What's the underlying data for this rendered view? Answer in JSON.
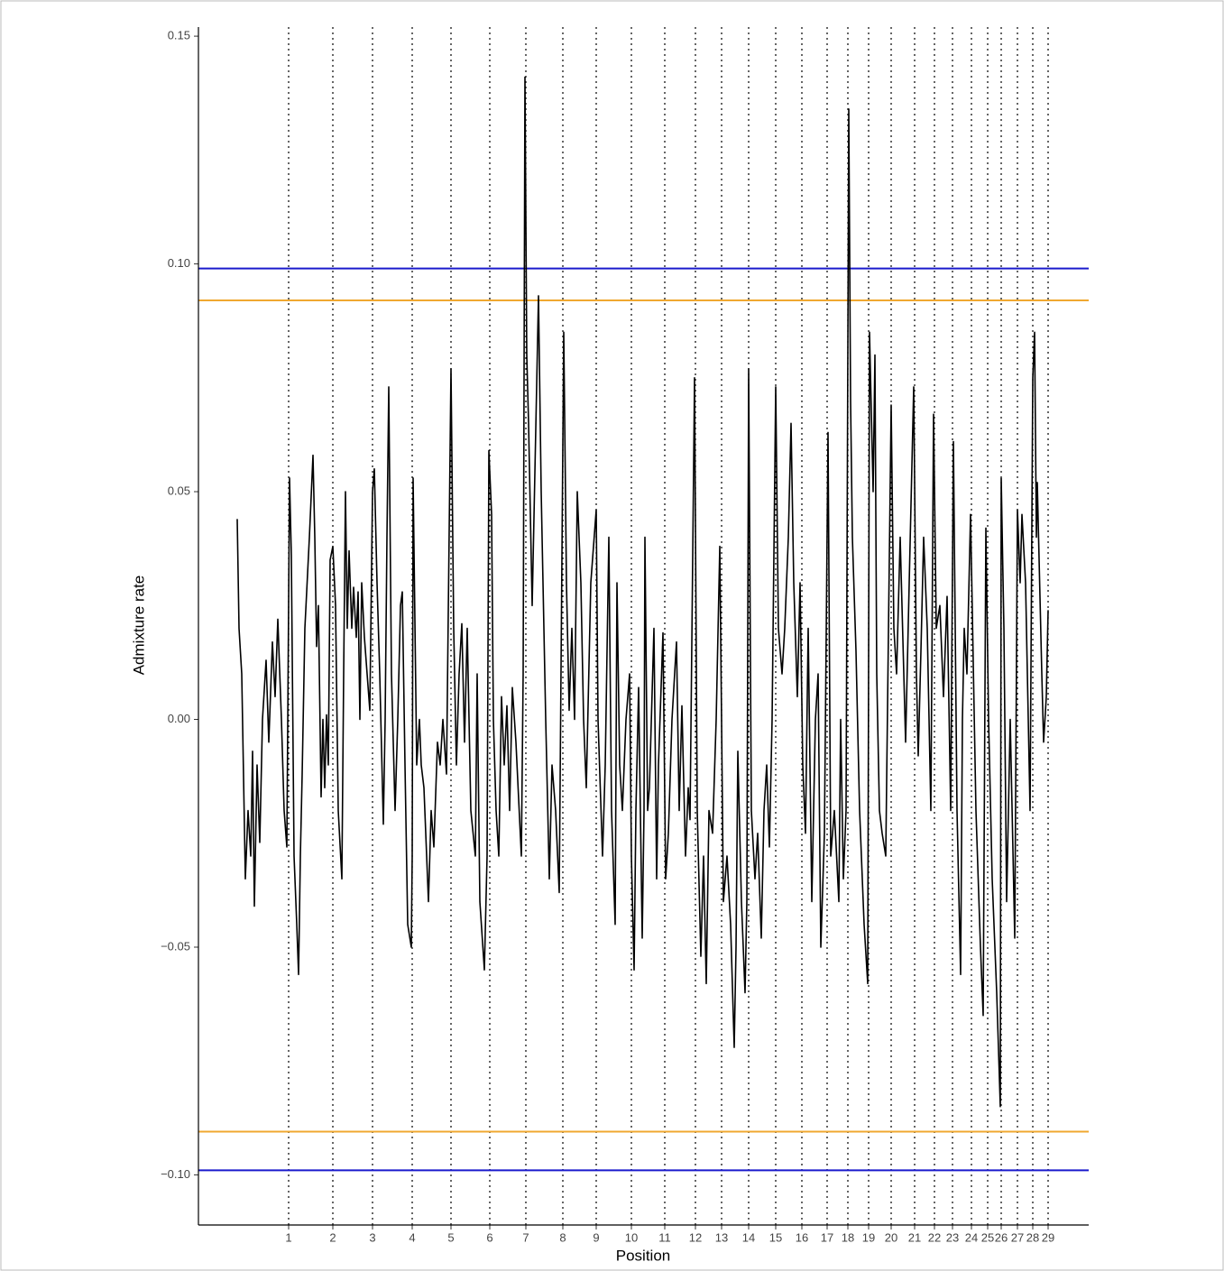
{
  "chart_data": {
    "type": "line",
    "x_label": "Position",
    "y_label": "Admixture rate",
    "color": "#000000",
    "xlim": [
      0,
      987
    ],
    "ylim": [
      -0.111,
      0.152
    ],
    "xticks": [
      {
        "value": 100,
        "label": "1"
      },
      {
        "value": 149,
        "label": "2"
      },
      {
        "value": 193,
        "label": "3"
      },
      {
        "value": 237,
        "label": "4"
      },
      {
        "value": 280,
        "label": "5"
      },
      {
        "value": 323,
        "label": "6"
      },
      {
        "value": 363,
        "label": "7"
      },
      {
        "value": 404,
        "label": "8"
      },
      {
        "value": 441,
        "label": "9"
      },
      {
        "value": 480,
        "label": "10"
      },
      {
        "value": 517,
        "label": "11"
      },
      {
        "value": 551,
        "label": "12"
      },
      {
        "value": 580,
        "label": "13"
      },
      {
        "value": 610,
        "label": "14"
      },
      {
        "value": 640,
        "label": "15"
      },
      {
        "value": 669,
        "label": "16"
      },
      {
        "value": 697,
        "label": "17"
      },
      {
        "value": 720,
        "label": "18"
      },
      {
        "value": 743,
        "label": "19"
      },
      {
        "value": 768,
        "label": "20"
      },
      {
        "value": 794,
        "label": "21"
      },
      {
        "value": 816,
        "label": "22"
      },
      {
        "value": 836,
        "label": "23"
      },
      {
        "value": 857,
        "label": "24"
      },
      {
        "value": 875,
        "label": "25"
      },
      {
        "value": 890,
        "label": "26"
      },
      {
        "value": 908,
        "label": "27"
      },
      {
        "value": 925,
        "label": "28"
      },
      {
        "value": 942,
        "label": "29"
      }
    ],
    "yticks": [
      0.15,
      {
        "value": 0.1,
        "label": "0.10"
      },
      0.05,
      {
        "value": 0,
        "label": "0.00"
      },
      {
        "value": -0.05,
        "label": "−0.05"
      },
      {
        "value": -0.1,
        "label": "−0.10"
      }
    ],
    "xgrid": "dotted",
    "hlines": [
      {
        "value": 0.099,
        "color": "#1a1acc"
      },
      {
        "value": 0.092,
        "color": "#f0a830"
      },
      {
        "value": -0.0905,
        "color": "#f0a830"
      },
      {
        "value": -0.099,
        "color": "#1a1acc"
      }
    ],
    "x": [
      43,
      45,
      48,
      52,
      55,
      58,
      60,
      62,
      65,
      68,
      71,
      75,
      78,
      82,
      85,
      88,
      92,
      95,
      98,
      101,
      103,
      106,
      109,
      111,
      113,
      115,
      118,
      123,
      127,
      129,
      131,
      133,
      136,
      138,
      140,
      142,
      144,
      146,
      149,
      152,
      155,
      159,
      161,
      163,
      165,
      167,
      170,
      172,
      175,
      177,
      179,
      181,
      184,
      187,
      190,
      193,
      195,
      198,
      201,
      205,
      207,
      209,
      211,
      214,
      218,
      221,
      224,
      226,
      229,
      232,
      236,
      237,
      238,
      242,
      245,
      247,
      250,
      255,
      258,
      261,
      265,
      268,
      271,
      275,
      280,
      283,
      286,
      289,
      292,
      295,
      298,
      302,
      307,
      309,
      312,
      317,
      320,
      322,
      325,
      327,
      330,
      333,
      336,
      339,
      342,
      345,
      348,
      352,
      358,
      360,
      362,
      364,
      366,
      370,
      377,
      380,
      382,
      385,
      389,
      392,
      396,
      400,
      405,
      408,
      411,
      414,
      417,
      420,
      424,
      427,
      430,
      435,
      441,
      443,
      448,
      451,
      455,
      458,
      462,
      464,
      467,
      470,
      474,
      478,
      480,
      483,
      485,
      488,
      492,
      494,
      495,
      498,
      500,
      505,
      508,
      510,
      515,
      518,
      521,
      525,
      530,
      533,
      536,
      540,
      543,
      545,
      550,
      553,
      557,
      560,
      563,
      566,
      570,
      574,
      578,
      582,
      586,
      590,
      594,
      596,
      598,
      602,
      606,
      608,
      610,
      613,
      617,
      620,
      624,
      627,
      630,
      633,
      636,
      640,
      643,
      647,
      650,
      654,
      657,
      660,
      664,
      667,
      670,
      673,
      676,
      680,
      684,
      687,
      690,
      694,
      698,
      701,
      705,
      710,
      712,
      715,
      718,
      721,
      723,
      725,
      729,
      733,
      738,
      742,
      744,
      748,
      750,
      752,
      755,
      758,
      762,
      768,
      771,
      774,
      778,
      784,
      788,
      793,
      796,
      798,
      801,
      804,
      808,
      812,
      815,
      818,
      822,
      826,
      830,
      834,
      837,
      841,
      845,
      847,
      849,
      852,
      856,
      862,
      867,
      870,
      873,
      876,
      880,
      885,
      889,
      890,
      893,
      896,
      900,
      905,
      908,
      911,
      913,
      917,
      922,
      925,
      927,
      929,
      930,
      935,
      937,
      940,
      942
    ],
    "values": [
      0.044,
      0.02,
      0.01,
      -0.035,
      -0.02,
      -0.03,
      -0.007,
      -0.041,
      -0.01,
      -0.027,
      0,
      0.013,
      -0.005,
      0.017,
      0.005,
      0.022,
      0,
      -0.02,
      -0.028,
      0.053,
      0.036,
      -0.03,
      -0.045,
      -0.056,
      -0.03,
      -0.012,
      0.02,
      0.04,
      0.058,
      0.04,
      0.016,
      0.025,
      -0.017,
      0,
      -0.015,
      0.001,
      -0.01,
      0.035,
      0.038,
      0.025,
      -0.02,
      -0.035,
      0.01,
      0.05,
      0.02,
      0.037,
      0.02,
      0.029,
      0.018,
      0.028,
      0,
      0.03,
      0.018,
      0.01,
      0.002,
      0.05,
      0.055,
      0.03,
      0.01,
      -0.023,
      0,
      0.04,
      0.073,
      0.01,
      -0.02,
      0,
      0.025,
      0.028,
      -0.01,
      -0.045,
      -0.05,
      -0.03,
      0.053,
      -0.01,
      0,
      -0.01,
      -0.015,
      -0.04,
      -0.02,
      -0.028,
      -0.005,
      -0.01,
      0,
      -0.012,
      0.077,
      0.02,
      -0.01,
      0.01,
      0.021,
      -0.005,
      0.02,
      -0.02,
      -0.03,
      0.01,
      -0.04,
      -0.055,
      -0.03,
      0.059,
      0.045,
      0,
      -0.02,
      -0.03,
      0.005,
      -0.01,
      0.003,
      -0.02,
      0.007,
      -0.005,
      -0.03,
      0.01,
      0.141,
      0.08,
      0.065,
      0.025,
      0.093,
      0.05,
      0.03,
      0,
      -0.035,
      -0.01,
      -0.02,
      -0.038,
      0.085,
      0.03,
      0.002,
      0.02,
      0,
      0.05,
      0.03,
      0,
      -0.015,
      0.03,
      0.046,
      0,
      -0.03,
      -0.01,
      0.04,
      -0.02,
      -0.045,
      0.03,
      -0.01,
      -0.02,
      0,
      0.01,
      -0.03,
      -0.055,
      -0.02,
      0.007,
      -0.048,
      -0.02,
      0.04,
      -0.02,
      -0.015,
      0.02,
      -0.035,
      -0.01,
      0.019,
      -0.035,
      -0.025,
      0,
      0.017,
      -0.02,
      0.003,
      -0.03,
      -0.015,
      -0.022,
      0.075,
      -0.02,
      -0.052,
      -0.03,
      -0.058,
      -0.02,
      -0.025,
      0,
      0.038,
      -0.04,
      -0.03,
      -0.045,
      -0.072,
      -0.05,
      -0.007,
      -0.04,
      -0.06,
      -0.04,
      0.077,
      -0.02,
      -0.035,
      -0.025,
      -0.048,
      -0.02,
      -0.01,
      -0.028,
      0,
      0.073,
      0.02,
      0.01,
      0.02,
      0.04,
      0.065,
      0.03,
      0.005,
      0.03,
      -0.01,
      -0.025,
      0.02,
      -0.04,
      0,
      0.01,
      -0.05,
      -0.025,
      0.063,
      -0.03,
      -0.02,
      -0.04,
      0,
      -0.035,
      -0.02,
      0.134,
      0.07,
      0.04,
      0.015,
      -0.02,
      -0.045,
      -0.058,
      0.085,
      0.05,
      0.08,
      0.01,
      -0.02,
      -0.025,
      -0.03,
      0.069,
      0.02,
      0.01,
      0.04,
      -0.005,
      0.03,
      0.073,
      0.01,
      -0.008,
      0.015,
      0.04,
      0.02,
      -0.02,
      0.067,
      0.02,
      0.025,
      0.005,
      0.027,
      -0.02,
      0.061,
      -0.02,
      -0.056,
      0,
      0.02,
      0.01,
      0.045,
      -0.02,
      -0.05,
      -0.065,
      0.042,
      0,
      -0.035,
      -0.06,
      -0.085,
      0.053,
      0.02,
      -0.04,
      0,
      -0.048,
      0.046,
      0.03,
      0.045,
      0.03,
      -0.02,
      0.075,
      0.085,
      0.04,
      0.052,
      0.01,
      -0.005,
      0.005,
      0.024
    ]
  }
}
